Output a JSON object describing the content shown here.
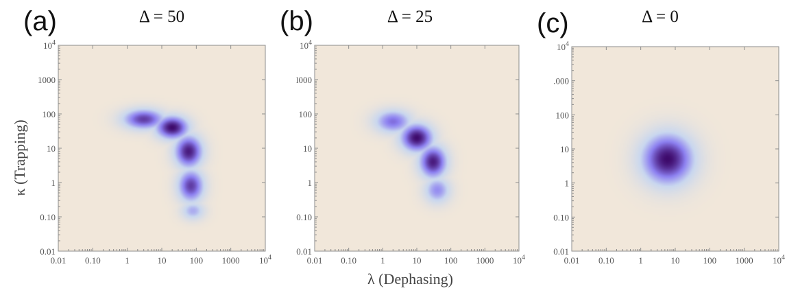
{
  "figure": {
    "xlabel": "λ (Dephasing)",
    "ylabel": "κ (Trapping)"
  },
  "chart_data": [
    {
      "type": "heatmap",
      "panel_label": "(a)",
      "title": "Δ = 50",
      "x_scale": "log",
      "y_scale": "log",
      "xlim": [
        0.01,
        10000
      ],
      "ylim": [
        0.01,
        10000
      ],
      "x_ticks": [
        "0.01",
        "0.10",
        "1",
        "10",
        "100",
        "1000",
        "10^4"
      ],
      "y_ticks": [
        "0.01",
        "0.10",
        "1",
        "10",
        "100",
        "1000",
        "10^4"
      ],
      "colormap": [
        "#f1e7da",
        "#c9d7ef",
        "#8c7ff0",
        "#3e0a6b"
      ],
      "features": [
        {
          "x": 3,
          "y": 70,
          "sx": 0.45,
          "sy": 0.22,
          "amp": 0.85
        },
        {
          "x": 20,
          "y": 40,
          "sx": 0.35,
          "sy": 0.25,
          "amp": 1.0
        },
        {
          "x": 60,
          "y": 8,
          "sx": 0.3,
          "sy": 0.35,
          "amp": 0.95
        },
        {
          "x": 70,
          "y": 0.8,
          "sx": 0.28,
          "sy": 0.35,
          "amp": 0.85
        },
        {
          "x": 80,
          "y": 0.15,
          "sx": 0.25,
          "sy": 0.2,
          "amp": 0.5
        }
      ]
    },
    {
      "type": "heatmap",
      "panel_label": "(b)",
      "title": "Δ = 25",
      "x_scale": "log",
      "y_scale": "log",
      "xlim": [
        0.01,
        10000
      ],
      "ylim": [
        0.01,
        10000
      ],
      "x_ticks": [
        "0.01",
        "0.10",
        "1",
        "10",
        "100",
        "1000",
        "10^4"
      ],
      "y_ticks": [
        "l000",
        "100",
        "10",
        "1",
        "0.10",
        "0.01"
      ],
      "y_tick_values": [
        1000,
        100,
        10,
        1,
        0.1,
        0.01
      ],
      "y_top_label": "10^4",
      "colormap": [
        "#f1e7da",
        "#c9d7ef",
        "#8c7ff0",
        "#3e0a6b"
      ],
      "features": [
        {
          "x": 2,
          "y": 60,
          "sx": 0.4,
          "sy": 0.25,
          "amp": 0.7
        },
        {
          "x": 10,
          "y": 20,
          "sx": 0.35,
          "sy": 0.3,
          "amp": 1.0
        },
        {
          "x": 30,
          "y": 4,
          "sx": 0.3,
          "sy": 0.35,
          "amp": 0.95
        },
        {
          "x": 40,
          "y": 0.6,
          "sx": 0.28,
          "sy": 0.28,
          "amp": 0.6
        }
      ]
    },
    {
      "type": "heatmap",
      "panel_label": "(c)",
      "title": "Δ = 0",
      "x_scale": "log",
      "y_scale": "log",
      "xlim": [
        0.01,
        10000
      ],
      "ylim": [
        0.01,
        10000
      ],
      "x_ticks": [
        "0.01",
        "0.10",
        "1",
        "10",
        "100",
        "1000",
        "10^4"
      ],
      "y_ticks": [
        ".000",
        "100",
        "10",
        "1",
        "0.10",
        "0.01"
      ],
      "y_tick_values": [
        1000,
        100,
        10,
        1,
        0.1,
        0.01
      ],
      "y_top_label": "10^4",
      "colormap": [
        "#f1e7da",
        "#c9d7ef",
        "#8c7ff0",
        "#3e0a6b"
      ],
      "features": [
        {
          "x": 6,
          "y": 5,
          "sx": 0.55,
          "sy": 0.55,
          "amp": 1.0
        }
      ]
    }
  ]
}
